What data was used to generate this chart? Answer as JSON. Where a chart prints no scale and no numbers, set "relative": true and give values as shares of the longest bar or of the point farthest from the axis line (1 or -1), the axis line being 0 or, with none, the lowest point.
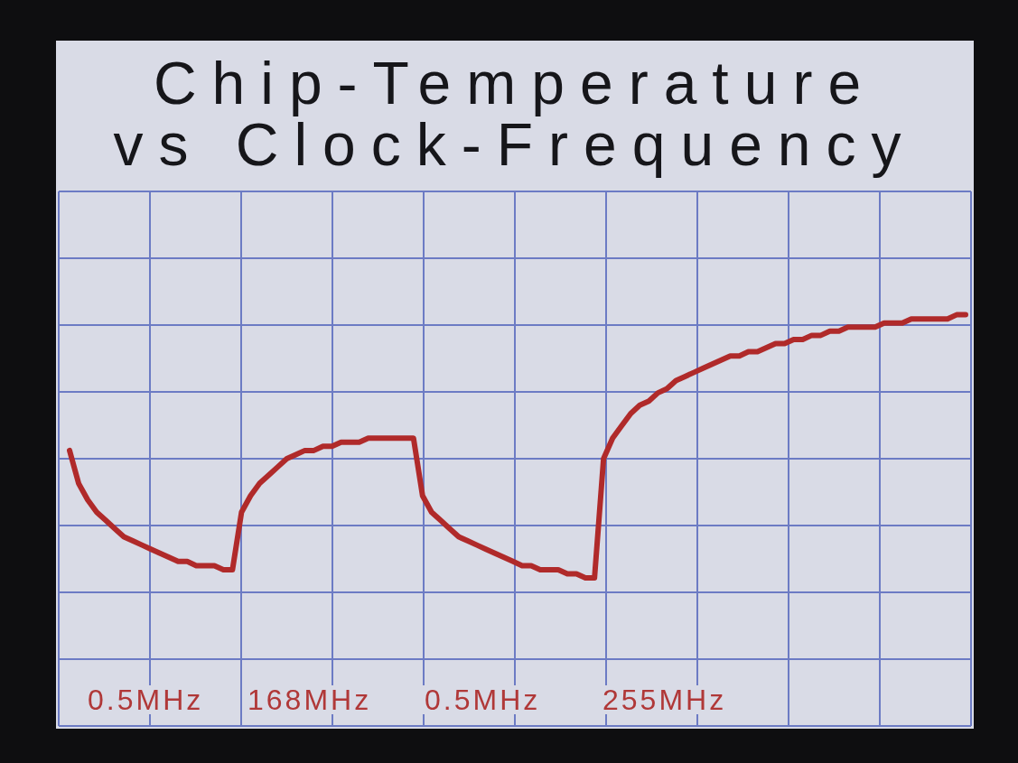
{
  "chart_data": {
    "type": "line",
    "title": "Chip-Temperature vs Clock-Frequency",
    "categories": [
      null,
      null,
      null,
      null,
      null,
      null,
      null,
      null,
      null,
      null,
      null,
      null,
      null,
      null,
      null,
      null,
      null,
      null,
      null,
      null,
      null,
      null,
      null,
      null,
      null,
      null,
      null,
      null,
      null,
      null,
      null,
      null,
      null,
      null,
      null,
      null,
      null,
      null,
      null,
      null,
      null,
      null,
      null,
      null,
      null,
      null,
      null,
      null,
      null,
      null,
      null,
      null,
      null,
      null,
      null,
      null,
      null,
      null,
      null,
      null,
      null,
      null,
      null,
      null,
      null,
      null,
      null,
      null,
      null,
      null,
      null,
      null,
      null,
      null,
      null,
      null,
      null,
      null,
      null,
      null,
      null,
      null,
      null,
      null,
      null,
      null,
      null,
      null,
      null,
      null,
      null,
      null,
      null,
      null,
      null,
      null,
      null,
      null,
      null,
      null
    ],
    "values": [
      0.67,
      0.59,
      0.55,
      0.52,
      0.5,
      0.48,
      0.46,
      0.45,
      0.44,
      0.43,
      0.42,
      0.41,
      0.4,
      0.4,
      0.39,
      0.39,
      0.39,
      0.38,
      0.38,
      0.52,
      0.56,
      0.59,
      0.61,
      0.63,
      0.65,
      0.66,
      0.67,
      0.67,
      0.68,
      0.68,
      0.69,
      0.69,
      0.69,
      0.7,
      0.7,
      0.7,
      0.7,
      0.7,
      0.7,
      0.56,
      0.52,
      0.5,
      0.48,
      0.46,
      0.45,
      0.44,
      0.43,
      0.42,
      0.41,
      0.4,
      0.39,
      0.39,
      0.38,
      0.38,
      0.38,
      0.37,
      0.37,
      0.36,
      0.36,
      0.65,
      0.7,
      0.73,
      0.76,
      0.78,
      0.79,
      0.81,
      0.82,
      0.84,
      0.85,
      0.86,
      0.87,
      0.88,
      0.89,
      0.9,
      0.9,
      0.91,
      0.91,
      0.92,
      0.93,
      0.93,
      0.94,
      0.94,
      0.95,
      0.95,
      0.96,
      0.96,
      0.97,
      0.97,
      0.97,
      0.97,
      0.98,
      0.98,
      0.98,
      0.99,
      0.99,
      0.99,
      0.99,
      0.99,
      1.0,
      1
    ],
    "color": "#b02a2a",
    "relative": true,
    "grid": true,
    "annotations": [
      "0.5MHz",
      "168MHz",
      "0.5MHz",
      "255MHz"
    ]
  }
}
